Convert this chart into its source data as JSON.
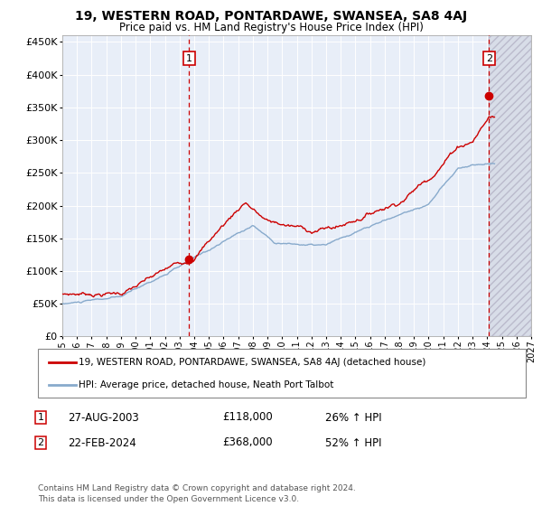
{
  "title": "19, WESTERN ROAD, PONTARDAWE, SWANSEA, SA8 4AJ",
  "subtitle": "Price paid vs. HM Land Registry's House Price Index (HPI)",
  "ylim": [
    0,
    460000
  ],
  "yticks": [
    0,
    50000,
    100000,
    150000,
    200000,
    250000,
    300000,
    350000,
    400000,
    450000
  ],
  "xlim_start": 1995.0,
  "xlim_end": 2027.0,
  "transaction1_date": 2003.65,
  "transaction1_price": 118000,
  "transaction2_date": 2024.13,
  "transaction2_price": 368000,
  "hpi_label": "HPI: Average price, detached house, Neath Port Talbot",
  "price_label": "19, WESTERN ROAD, PONTARDAWE, SWANSEA, SA8 4AJ (detached house)",
  "note1": "27-AUG-2003",
  "note1_price": "£118,000",
  "note1_hpi": "26% ↑ HPI",
  "note2": "22-FEB-2024",
  "note2_price": "£368,000",
  "note2_hpi": "52% ↑ HPI",
  "footer": "Contains HM Land Registry data © Crown copyright and database right 2024.\nThis data is licensed under the Open Government Licence v3.0.",
  "red_color": "#cc0000",
  "blue_color": "#88aacc",
  "bg_color": "#e8eef8",
  "hatch_color": "#cccccc",
  "grid_color": "#ffffff"
}
